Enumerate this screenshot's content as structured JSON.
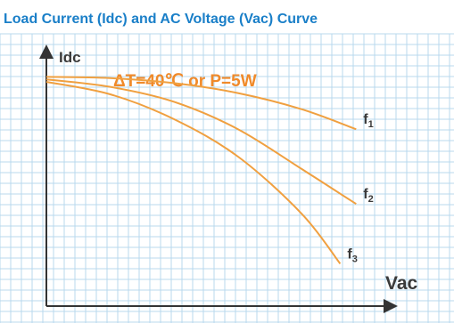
{
  "chart_data": {
    "type": "line",
    "title": "Load Current (Idc) and AC Voltage (Vac) Curve",
    "ylabel": "Idc",
    "xlabel": "Vac",
    "annotation": "ΔT=40℃ or P=5W",
    "grid": true,
    "legend": "none",
    "xlim": [
      0,
      100
    ],
    "ylim": [
      0,
      100
    ],
    "series": [
      {
        "name": "f1",
        "x": [
          0,
          20,
          40,
          60,
          80,
          97
        ],
        "values": [
          92,
          91.5,
          89.5,
          85.5,
          79,
          71
        ]
      },
      {
        "name": "f2",
        "x": [
          0,
          20,
          40,
          60,
          80,
          97
        ],
        "values": [
          91,
          88,
          82,
          71,
          55,
          41
        ]
      },
      {
        "name": "f3",
        "x": [
          0,
          20,
          40,
          60,
          80,
          92
        ],
        "values": [
          90,
          85,
          75,
          60,
          37,
          17
        ]
      }
    ]
  },
  "colors": {
    "title": "#1a7fc8",
    "curve": "#f0a040",
    "annotation": "#f08a2a",
    "grid": "#b9d9ee",
    "axis": "#333333"
  }
}
